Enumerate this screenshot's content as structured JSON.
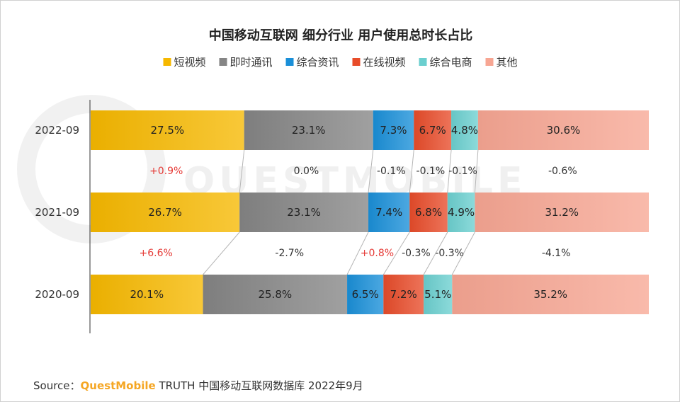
{
  "chart_data": {
    "type": "bar",
    "orientation": "horizontal",
    "stacked": "percent",
    "title": "中国移动互联网 细分行业 用户使用总时长占比",
    "legend_position": "top",
    "categories": [
      "2022-09",
      "2021-09",
      "2020-09"
    ],
    "series": [
      {
        "name": "短视频",
        "color": "#f6b800",
        "values": [
          27.5,
          26.7,
          20.1
        ],
        "labels": [
          "27.5%",
          "26.7%",
          "20.1%"
        ]
      },
      {
        "name": "即时通讯",
        "color": "#858585",
        "values": [
          23.1,
          23.1,
          25.8
        ],
        "labels": [
          "23.1%",
          "23.1%",
          "25.8%"
        ]
      },
      {
        "name": "综合资讯",
        "color": "#1a8fd8",
        "values": [
          7.3,
          7.4,
          6.5
        ],
        "labels": [
          "7.3%",
          "7.4%",
          "6.5%"
        ]
      },
      {
        "name": "在线视频",
        "color": "#e84c2a",
        "values": [
          6.7,
          6.8,
          7.2
        ],
        "labels": [
          "6.7%",
          "6.8%",
          "7.2%"
        ]
      },
      {
        "name": "综合电商",
        "color": "#6bcfcf",
        "values": [
          4.8,
          4.9,
          5.1
        ],
        "labels": [
          "4.8%",
          "4.9%",
          "5.1%"
        ]
      },
      {
        "name": "其他",
        "color": "#f7a693",
        "values": [
          30.6,
          31.2,
          35.2
        ],
        "labels": [
          "30.6%",
          "31.2%",
          "35.2%"
        ]
      }
    ],
    "changes": [
      [
        "+0.9%",
        "0.0%",
        "-0.1%",
        "-0.1%",
        "-0.1%",
        "-0.6%"
      ],
      [
        "+6.6%",
        "-2.7%",
        "+0.8%",
        "-0.3%",
        "-0.3%",
        "-4.1%"
      ]
    ],
    "positive_change_color": "#e53935",
    "neutral_change_color": "#333333",
    "watermark": "QUESTMOBILE"
  },
  "source": {
    "prefix": "Source：",
    "brand": "QuestMobile",
    "text": " TRUTH 中国移动互联网数据库 2022年9月"
  }
}
